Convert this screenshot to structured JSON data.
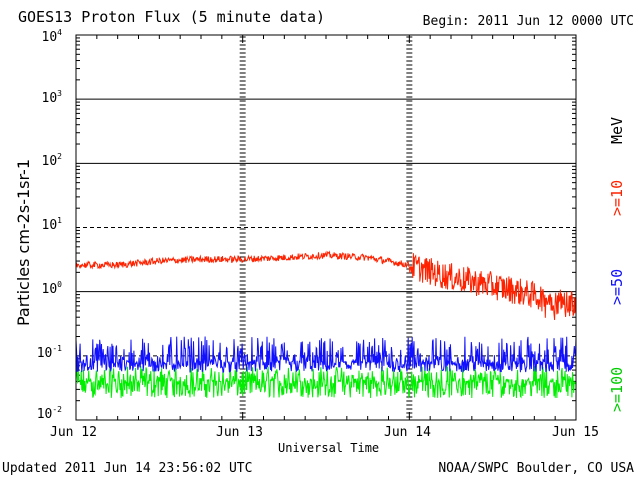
{
  "header": {
    "title": "GOES13 Proton Flux (5 minute data)",
    "begin": "Begin: 2011 Jun 12 0000 UTC"
  },
  "footer": {
    "updated": "Updated 2011 Jun 14 23:56:02 UTC",
    "source": "NOAA/SWPC Boulder, CO USA"
  },
  "colors": {
    "ge10": "#ff2200",
    "ge50": "#1010ff",
    "ge100": "#00ee00"
  },
  "chart_data": {
    "type": "line",
    "title": "GOES13 Proton Flux (5 minute data)",
    "xlabel": "Universal Time",
    "ylabel": "Particles cm-2s-1sr-1",
    "yscale": "log",
    "ylim": [
      0.01,
      10000
    ],
    "xlim_days": [
      0,
      3
    ],
    "x_tick_labels": [
      "Jun 12",
      "Jun 13",
      "Jun 14",
      "Jun 15"
    ],
    "y_tick_labels": [
      {
        "base": "10",
        "exp": "-2"
      },
      {
        "base": "10",
        "exp": "-1"
      },
      {
        "base": "10",
        "exp": "0"
      },
      {
        "base": "10",
        "exp": "1"
      },
      {
        "base": "10",
        "exp": "2"
      },
      {
        "base": "10",
        "exp": "3"
      },
      {
        "base": "10",
        "exp": "4"
      }
    ],
    "grid": true,
    "legend": {
      "unit": "MeV",
      "entries": [
        ">=10",
        ">=50",
        ">=100"
      ]
    },
    "series": [
      {
        "name": ">=10 MeV",
        "x_days": [
          0,
          0.25,
          0.5,
          0.75,
          1.0,
          1.25,
          1.5,
          1.75,
          2.0,
          2.2,
          2.4,
          2.6,
          2.8,
          2.95,
          3.0
        ],
        "values": [
          2.6,
          2.6,
          3.0,
          3.2,
          3.2,
          3.4,
          3.7,
          3.4,
          2.6,
          1.8,
          1.4,
          1.1,
          0.8,
          0.65,
          0.7
        ],
        "noise_ratio": 1.25
      },
      {
        "name": ">=50 MeV",
        "x_days": [
          0,
          3.0
        ],
        "values": [
          0.08,
          0.08
        ],
        "range": [
          0.055,
          0.2
        ]
      },
      {
        "name": ">=100 MeV",
        "x_days": [
          0,
          3.0
        ],
        "values": [
          0.04,
          0.04
        ],
        "range": [
          0.022,
          0.07
        ]
      }
    ]
  }
}
